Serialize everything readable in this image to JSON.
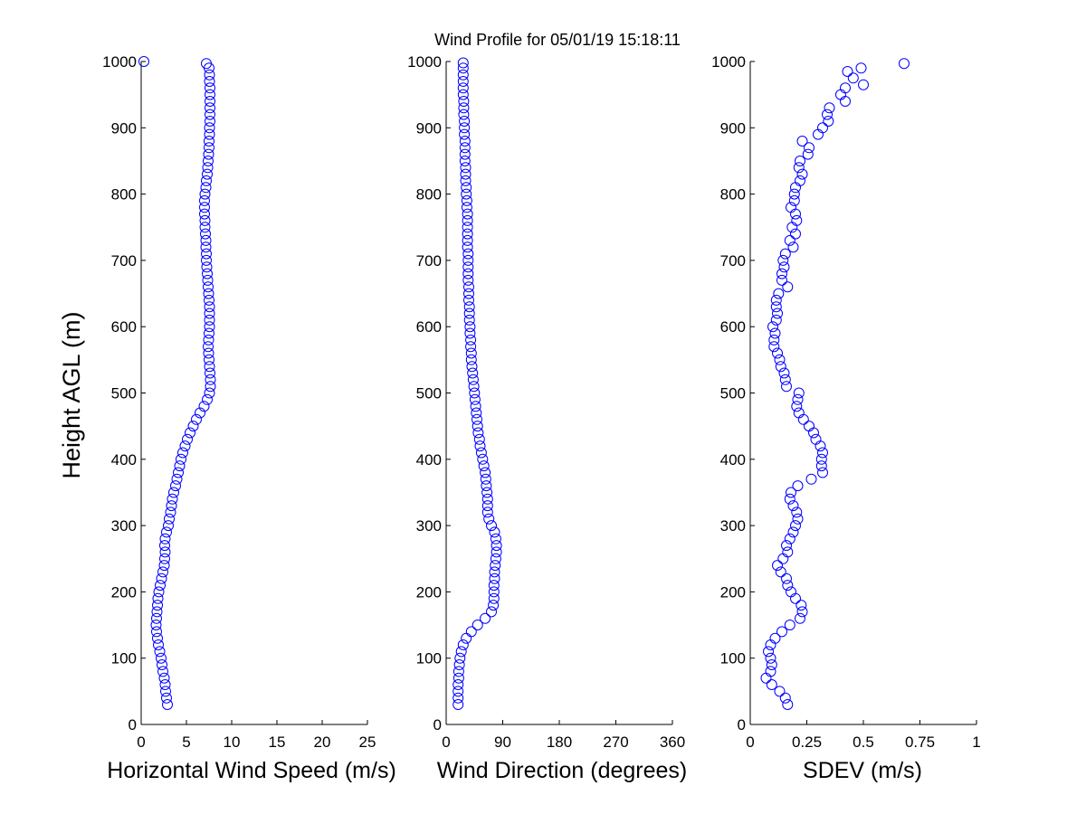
{
  "title": "Wind Profile for  05/01/19 15:18:11",
  "ylabel": "Height AGL (m)",
  "marker_color": "#0000ff",
  "chart_data": [
    {
      "type": "scatter",
      "name": "speed",
      "xlabel": "Horizontal Wind Speed (m/s)",
      "xlim": [
        0,
        25
      ],
      "ylim": [
        0,
        1000
      ],
      "xticks": [
        0,
        5,
        10,
        15,
        20,
        25
      ],
      "xtick_labels": [
        "0",
        "5",
        "10",
        "15",
        "20",
        "25"
      ],
      "yticks": [
        0,
        100,
        200,
        300,
        400,
        500,
        600,
        700,
        800,
        900,
        1000
      ],
      "ytick_labels": [
        "0",
        "100",
        "200",
        "300",
        "400",
        "500",
        "600",
        "700",
        "800",
        "900",
        "1000"
      ],
      "points": [
        [
          0.3,
          1000
        ],
        [
          2.9,
          30
        ],
        [
          2.8,
          40
        ],
        [
          2.7,
          50
        ],
        [
          2.65,
          60
        ],
        [
          2.55,
          70
        ],
        [
          2.4,
          80
        ],
        [
          2.3,
          90
        ],
        [
          2.2,
          100
        ],
        [
          2.05,
          110
        ],
        [
          1.9,
          120
        ],
        [
          1.8,
          130
        ],
        [
          1.7,
          140
        ],
        [
          1.65,
          150
        ],
        [
          1.7,
          160
        ],
        [
          1.75,
          170
        ],
        [
          1.8,
          180
        ],
        [
          1.85,
          190
        ],
        [
          1.95,
          200
        ],
        [
          2.1,
          210
        ],
        [
          2.25,
          220
        ],
        [
          2.4,
          230
        ],
        [
          2.55,
          240
        ],
        [
          2.6,
          250
        ],
        [
          2.65,
          260
        ],
        [
          2.6,
          270
        ],
        [
          2.65,
          280
        ],
        [
          2.8,
          290
        ],
        [
          3.0,
          300
        ],
        [
          3.1,
          310
        ],
        [
          3.25,
          320
        ],
        [
          3.35,
          330
        ],
        [
          3.45,
          340
        ],
        [
          3.6,
          350
        ],
        [
          3.8,
          360
        ],
        [
          3.95,
          370
        ],
        [
          4.1,
          380
        ],
        [
          4.25,
          390
        ],
        [
          4.4,
          400
        ],
        [
          4.6,
          410
        ],
        [
          4.85,
          420
        ],
        [
          5.1,
          430
        ],
        [
          5.4,
          440
        ],
        [
          5.75,
          450
        ],
        [
          6.1,
          460
        ],
        [
          6.5,
          470
        ],
        [
          6.95,
          480
        ],
        [
          7.3,
          490
        ],
        [
          7.55,
          500
        ],
        [
          7.65,
          510
        ],
        [
          7.65,
          520
        ],
        [
          7.6,
          530
        ],
        [
          7.55,
          540
        ],
        [
          7.5,
          550
        ],
        [
          7.45,
          560
        ],
        [
          7.4,
          570
        ],
        [
          7.45,
          580
        ],
        [
          7.5,
          590
        ],
        [
          7.55,
          600
        ],
        [
          7.55,
          610
        ],
        [
          7.55,
          620
        ],
        [
          7.55,
          630
        ],
        [
          7.5,
          640
        ],
        [
          7.45,
          650
        ],
        [
          7.4,
          660
        ],
        [
          7.35,
          670
        ],
        [
          7.3,
          680
        ],
        [
          7.25,
          690
        ],
        [
          7.2,
          700
        ],
        [
          7.2,
          710
        ],
        [
          7.15,
          720
        ],
        [
          7.15,
          730
        ],
        [
          7.1,
          740
        ],
        [
          7.05,
          750
        ],
        [
          7.05,
          760
        ],
        [
          7.0,
          770
        ],
        [
          7.0,
          780
        ],
        [
          7.0,
          790
        ],
        [
          7.05,
          800
        ],
        [
          7.15,
          810
        ],
        [
          7.2,
          820
        ],
        [
          7.3,
          830
        ],
        [
          7.35,
          840
        ],
        [
          7.4,
          850
        ],
        [
          7.45,
          860
        ],
        [
          7.5,
          870
        ],
        [
          7.5,
          880
        ],
        [
          7.55,
          890
        ],
        [
          7.55,
          900
        ],
        [
          7.6,
          910
        ],
        [
          7.6,
          920
        ],
        [
          7.6,
          930
        ],
        [
          7.6,
          940
        ],
        [
          7.6,
          950
        ],
        [
          7.6,
          960
        ],
        [
          7.55,
          970
        ],
        [
          7.55,
          980
        ],
        [
          7.5,
          990
        ],
        [
          7.2,
          997
        ]
      ]
    },
    {
      "type": "scatter",
      "name": "direction",
      "xlabel": "Wind Direction (degrees)",
      "xlim": [
        0,
        360
      ],
      "ylim": [
        0,
        1000
      ],
      "xticks": [
        0,
        90,
        180,
        270,
        360
      ],
      "xtick_labels": [
        "0",
        "90",
        "180",
        "270",
        "360"
      ],
      "yticks": [
        0,
        100,
        200,
        300,
        400,
        500,
        600,
        700,
        800,
        900,
        1000
      ],
      "ytick_labels": [
        "0",
        "100",
        "200",
        "300",
        "400",
        "500",
        "600",
        "700",
        "800",
        "900",
        "1000"
      ],
      "points": [
        [
          19,
          30
        ],
        [
          19,
          40
        ],
        [
          19,
          50
        ],
        [
          19,
          60
        ],
        [
          20,
          70
        ],
        [
          20,
          80
        ],
        [
          21,
          90
        ],
        [
          22,
          100
        ],
        [
          24,
          110
        ],
        [
          27,
          120
        ],
        [
          32,
          130
        ],
        [
          40,
          140
        ],
        [
          50,
          150
        ],
        [
          62,
          160
        ],
        [
          72,
          170
        ],
        [
          75,
          180
        ],
        [
          76,
          190
        ],
        [
          76,
          200
        ],
        [
          76,
          210
        ],
        [
          77,
          220
        ],
        [
          77,
          230
        ],
        [
          78,
          240
        ],
        [
          79,
          250
        ],
        [
          80,
          260
        ],
        [
          80,
          270
        ],
        [
          79,
          280
        ],
        [
          77,
          290
        ],
        [
          72,
          300
        ],
        [
          68,
          310
        ],
        [
          66,
          320
        ],
        [
          66,
          330
        ],
        [
          66,
          340
        ],
        [
          65,
          350
        ],
        [
          64,
          360
        ],
        [
          63,
          370
        ],
        [
          62,
          380
        ],
        [
          60,
          390
        ],
        [
          58,
          400
        ],
        [
          56,
          410
        ],
        [
          54,
          420
        ],
        [
          53,
          430
        ],
        [
          51,
          440
        ],
        [
          50,
          450
        ],
        [
          49,
          460
        ],
        [
          48,
          470
        ],
        [
          47,
          480
        ],
        [
          46,
          490
        ],
        [
          45,
          500
        ],
        [
          44,
          510
        ],
        [
          43,
          520
        ],
        [
          42,
          530
        ],
        [
          41,
          540
        ],
        [
          40,
          550
        ],
        [
          40,
          560
        ],
        [
          39,
          570
        ],
        [
          39,
          580
        ],
        [
          38,
          590
        ],
        [
          38,
          600
        ],
        [
          37,
          610
        ],
        [
          37,
          620
        ],
        [
          37,
          630
        ],
        [
          36,
          640
        ],
        [
          36,
          650
        ],
        [
          36,
          660
        ],
        [
          35,
          670
        ],
        [
          35,
          680
        ],
        [
          35,
          690
        ],
        [
          35,
          700
        ],
        [
          35,
          710
        ],
        [
          34,
          720
        ],
        [
          34,
          730
        ],
        [
          34,
          740
        ],
        [
          34,
          750
        ],
        [
          34,
          760
        ],
        [
          34,
          770
        ],
        [
          33,
          780
        ],
        [
          33,
          790
        ],
        [
          32,
          800
        ],
        [
          32,
          810
        ],
        [
          31,
          820
        ],
        [
          31,
          830
        ],
        [
          31,
          840
        ],
        [
          30,
          850
        ],
        [
          30,
          860
        ],
        [
          30,
          870
        ],
        [
          30,
          880
        ],
        [
          29,
          890
        ],
        [
          29,
          900
        ],
        [
          29,
          910
        ],
        [
          28,
          920
        ],
        [
          28,
          930
        ],
        [
          28,
          940
        ],
        [
          27,
          950
        ],
        [
          27,
          960
        ],
        [
          27,
          970
        ],
        [
          27,
          980
        ],
        [
          27,
          990
        ],
        [
          27,
          998
        ]
      ]
    },
    {
      "type": "scatter",
      "name": "sdev",
      "xlabel": "SDEV  (m/s)",
      "xlim": [
        0,
        1
      ],
      "ylim": [
        0,
        1000
      ],
      "xticks": [
        0,
        0.25,
        0.5,
        0.75,
        1
      ],
      "xtick_labels": [
        "0",
        "0.25",
        "0.5",
        "0.75",
        "1"
      ],
      "yticks": [
        0,
        100,
        200,
        300,
        400,
        500,
        600,
        700,
        800,
        900,
        1000
      ],
      "ytick_labels": [
        "0",
        "100",
        "200",
        "300",
        "400",
        "500",
        "600",
        "700",
        "800",
        "900",
        "1000"
      ],
      "points": [
        [
          0.165,
          30
        ],
        [
          0.155,
          40
        ],
        [
          0.13,
          50
        ],
        [
          0.095,
          60
        ],
        [
          0.07,
          70
        ],
        [
          0.09,
          80
        ],
        [
          0.095,
          90
        ],
        [
          0.09,
          100
        ],
        [
          0.08,
          110
        ],
        [
          0.09,
          120
        ],
        [
          0.11,
          130
        ],
        [
          0.14,
          140
        ],
        [
          0.175,
          150
        ],
        [
          0.22,
          160
        ],
        [
          0.23,
          170
        ],
        [
          0.225,
          180
        ],
        [
          0.2,
          190
        ],
        [
          0.18,
          200
        ],
        [
          0.165,
          210
        ],
        [
          0.16,
          220
        ],
        [
          0.135,
          230
        ],
        [
          0.12,
          240
        ],
        [
          0.145,
          250
        ],
        [
          0.165,
          260
        ],
        [
          0.16,
          270
        ],
        [
          0.175,
          280
        ],
        [
          0.19,
          290
        ],
        [
          0.2,
          300
        ],
        [
          0.21,
          310
        ],
        [
          0.205,
          320
        ],
        [
          0.19,
          330
        ],
        [
          0.175,
          340
        ],
        [
          0.18,
          350
        ],
        [
          0.21,
          360
        ],
        [
          0.27,
          370
        ],
        [
          0.32,
          380
        ],
        [
          0.315,
          390
        ],
        [
          0.315,
          400
        ],
        [
          0.32,
          410
        ],
        [
          0.31,
          420
        ],
        [
          0.29,
          430
        ],
        [
          0.28,
          440
        ],
        [
          0.26,
          450
        ],
        [
          0.235,
          460
        ],
        [
          0.215,
          470
        ],
        [
          0.205,
          480
        ],
        [
          0.21,
          490
        ],
        [
          0.215,
          500
        ],
        [
          0.16,
          510
        ],
        [
          0.155,
          520
        ],
        [
          0.15,
          530
        ],
        [
          0.135,
          540
        ],
        [
          0.13,
          550
        ],
        [
          0.12,
          560
        ],
        [
          0.105,
          570
        ],
        [
          0.105,
          580
        ],
        [
          0.11,
          590
        ],
        [
          0.1,
          600
        ],
        [
          0.115,
          610
        ],
        [
          0.12,
          620
        ],
        [
          0.115,
          630
        ],
        [
          0.115,
          640
        ],
        [
          0.125,
          650
        ],
        [
          0.165,
          660
        ],
        [
          0.14,
          670
        ],
        [
          0.14,
          680
        ],
        [
          0.15,
          690
        ],
        [
          0.145,
          700
        ],
        [
          0.155,
          710
        ],
        [
          0.19,
          720
        ],
        [
          0.175,
          730
        ],
        [
          0.2,
          740
        ],
        [
          0.185,
          750
        ],
        [
          0.205,
          760
        ],
        [
          0.2,
          770
        ],
        [
          0.18,
          780
        ],
        [
          0.195,
          790
        ],
        [
          0.195,
          800
        ],
        [
          0.2,
          810
        ],
        [
          0.22,
          820
        ],
        [
          0.23,
          830
        ],
        [
          0.215,
          840
        ],
        [
          0.22,
          850
        ],
        [
          0.255,
          860
        ],
        [
          0.26,
          870
        ],
        [
          0.23,
          880
        ],
        [
          0.3,
          890
        ],
        [
          0.32,
          900
        ],
        [
          0.345,
          910
        ],
        [
          0.34,
          920
        ],
        [
          0.35,
          930
        ],
        [
          0.42,
          940
        ],
        [
          0.4,
          950
        ],
        [
          0.42,
          960
        ],
        [
          0.5,
          965
        ],
        [
          0.455,
          975
        ],
        [
          0.43,
          985
        ],
        [
          0.49,
          990
        ],
        [
          0.68,
          997
        ]
      ]
    }
  ]
}
